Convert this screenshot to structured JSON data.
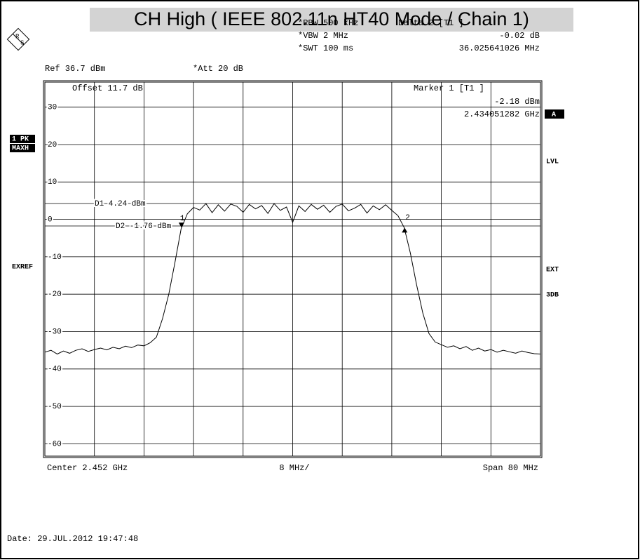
{
  "chart_data": {
    "type": "line",
    "title": "CH High ( IEEE 802.11n HT40 Mode / Chain 1)",
    "logo": [
      "R",
      "S"
    ],
    "header": {
      "rbw": "*RBW  500 kHz",
      "vbw": "*VBW  2 MHz",
      "swt": "*SWT  100 ms",
      "ref": "Ref  36.7 dBm",
      "att": "*Att  20 dB",
      "delta_title": "Delta 2 [T1 ]",
      "delta_value": "-0.02 dB",
      "delta_freq": "36.025641026 MHz"
    },
    "plot_texts": {
      "offset": "Offset  11.7 dB",
      "marker_title": "Marker 1 [T1 ]",
      "marker_value": "-2.18 dBm",
      "marker_freq": "2.434051282 GHz"
    },
    "left_labels": {
      "trace": "1 PK",
      "mode": "MAXH",
      "exref": "EXREF"
    },
    "right_labels": {
      "a": "A",
      "lvl": "LVL",
      "ext": "EXT",
      "db3": "3DB"
    },
    "footer": {
      "center": "Center  2.452 GHz",
      "div": "8 MHz/",
      "span": "Span  80 MHz",
      "date": "Date: 29.JUL.2012  19:47:48"
    },
    "xlim": [
      2.412,
      2.492
    ],
    "ylim": [
      -63.3,
      36.7
    ],
    "yticks": [
      30,
      20,
      10,
      0,
      -10,
      -20,
      -30,
      -40,
      -50,
      -60
    ],
    "grid": true,
    "display_lines": [
      {
        "text": "D1  4.24 dBm",
        "value": 4.24
      },
      {
        "text": "D2  -1.76 dBm",
        "value": -1.76
      }
    ],
    "markers": [
      {
        "label": "1",
        "x": 2.434051282,
        "value": -2.18
      },
      {
        "label": "2",
        "x": 2.470076923,
        "value": -2.2
      }
    ],
    "series": [
      {
        "name": "1 PK MAXH",
        "color": "#000000",
        "x": [
          2.412,
          2.413,
          2.414,
          2.415,
          2.416,
          2.417,
          2.418,
          2.419,
          2.42,
          2.421,
          2.422,
          2.423,
          2.424,
          2.425,
          2.426,
          2.427,
          2.428,
          2.429,
          2.43,
          2.431,
          2.432,
          2.433,
          2.434,
          2.435,
          2.436,
          2.437,
          2.438,
          2.439,
          2.44,
          2.441,
          2.442,
          2.443,
          2.444,
          2.445,
          2.446,
          2.447,
          2.448,
          2.449,
          2.45,
          2.451,
          2.452,
          2.453,
          2.454,
          2.455,
          2.456,
          2.457,
          2.458,
          2.459,
          2.46,
          2.461,
          2.462,
          2.463,
          2.464,
          2.465,
          2.466,
          2.467,
          2.468,
          2.469,
          2.47,
          2.471,
          2.472,
          2.473,
          2.474,
          2.475,
          2.476,
          2.477,
          2.478,
          2.479,
          2.48,
          2.481,
          2.482,
          2.483,
          2.484,
          2.485,
          2.486,
          2.487,
          2.488,
          2.489,
          2.49,
          2.491,
          2.492
        ],
        "values": [
          -35.5,
          -35.0,
          -36.0,
          -35.2,
          -35.8,
          -35.0,
          -34.6,
          -35.3,
          -34.8,
          -34.4,
          -34.9,
          -34.2,
          -34.6,
          -33.9,
          -34.3,
          -33.6,
          -33.8,
          -33.0,
          -31.5,
          -26.5,
          -20.0,
          -11.5,
          -2.5,
          1.5,
          3.2,
          2.5,
          4.2,
          1.8,
          3.9,
          2.2,
          4.1,
          3.5,
          1.9,
          4.0,
          2.8,
          3.7,
          1.6,
          4.2,
          2.4,
          3.3,
          -0.8,
          3.6,
          2.1,
          4.0,
          2.7,
          3.8,
          1.9,
          3.5,
          4.1,
          2.3,
          3.0,
          4.0,
          1.7,
          3.6,
          2.6,
          3.9,
          2.4,
          1.0,
          -2.2,
          -9.0,
          -17.5,
          -25.0,
          -30.5,
          -32.8,
          -33.5,
          -34.2,
          -33.8,
          -34.6,
          -34.0,
          -35.0,
          -34.4,
          -35.2,
          -34.8,
          -35.5,
          -35.0,
          -35.4,
          -35.8,
          -35.2,
          -35.6,
          -35.9,
          -36.0
        ]
      }
    ]
  }
}
